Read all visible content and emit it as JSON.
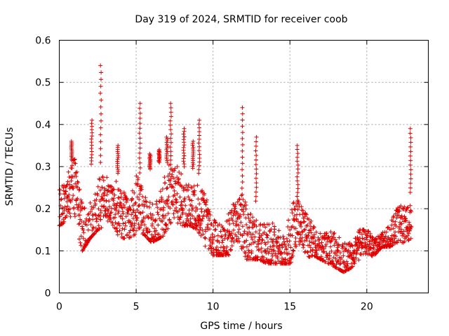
{
  "chart_data": {
    "type": "scatter",
    "title": "Day 319 of 2024, SRMTID for receiver coob",
    "xlabel": "GPS time / hours",
    "ylabel": "SRMTID / TECUs",
    "xlim": [
      0,
      24
    ],
    "ylim": [
      0,
      0.6
    ],
    "xticks": [
      0,
      5,
      10,
      15,
      20
    ],
    "yticks": [
      0,
      0.1,
      0.2,
      0.3,
      0.4,
      0.5,
      0.6
    ],
    "xtick_labels": [
      "0",
      "5",
      "10",
      "15",
      "20"
    ],
    "ytick_labels": [
      "0",
      "0.1",
      "0.2",
      "0.3",
      "0.4",
      "0.5",
      "0.6"
    ],
    "grid": true,
    "marker": "+",
    "color": "#e00000",
    "series": [
      {
        "name": "SRMTID",
        "envelope": {
          "t": [
            0.0,
            0.5,
            1.0,
            1.5,
            2.0,
            2.5,
            3.0,
            3.5,
            4.0,
            4.5,
            5.0,
            5.5,
            6.0,
            6.5,
            7.0,
            7.5,
            8.0,
            8.5,
            9.0,
            9.5,
            10.0,
            10.5,
            11.0,
            11.5,
            12.0,
            12.5,
            13.0,
            13.5,
            14.0,
            14.5,
            15.0,
            15.5,
            16.0,
            16.5,
            17.0,
            17.5,
            18.0,
            18.5,
            19.0,
            19.5,
            20.0,
            20.5,
            21.0,
            21.5,
            22.0,
            22.5,
            22.9
          ],
          "low": [
            0.16,
            0.17,
            0.17,
            0.1,
            0.13,
            0.15,
            0.16,
            0.15,
            0.13,
            0.13,
            0.14,
            0.14,
            0.12,
            0.13,
            0.14,
            0.14,
            0.16,
            0.16,
            0.15,
            0.11,
            0.09,
            0.09,
            0.09,
            0.09,
            0.08,
            0.08,
            0.08,
            0.07,
            0.07,
            0.07,
            0.07,
            0.09,
            0.08,
            0.09,
            0.08,
            0.07,
            0.06,
            0.05,
            0.06,
            0.07,
            0.08,
            0.09,
            0.11,
            0.11,
            0.12,
            0.12,
            0.13
          ],
          "high": [
            0.27,
            0.29,
            0.33,
            0.25,
            0.3,
            0.33,
            0.28,
            0.26,
            0.3,
            0.24,
            0.3,
            0.27,
            0.3,
            0.31,
            0.31,
            0.3,
            0.3,
            0.3,
            0.29,
            0.26,
            0.23,
            0.22,
            0.21,
            0.21,
            0.24,
            0.23,
            0.21,
            0.19,
            0.2,
            0.19,
            0.23,
            0.22,
            0.19,
            0.19,
            0.18,
            0.17,
            0.16,
            0.15,
            0.15,
            0.15,
            0.15,
            0.14,
            0.17,
            0.19,
            0.22,
            0.23,
            0.24
          ]
        },
        "spikes": [
          {
            "t": 0.8,
            "max": 0.36
          },
          {
            "t": 2.1,
            "max": 0.41
          },
          {
            "t": 2.7,
            "max": 0.54
          },
          {
            "t": 3.8,
            "max": 0.35
          },
          {
            "t": 5.25,
            "max": 0.45
          },
          {
            "t": 5.9,
            "max": 0.33
          },
          {
            "t": 6.5,
            "max": 0.34
          },
          {
            "t": 7.0,
            "max": 0.37
          },
          {
            "t": 7.25,
            "max": 0.45
          },
          {
            "t": 8.1,
            "max": 0.39
          },
          {
            "t": 8.7,
            "max": 0.36
          },
          {
            "t": 9.1,
            "max": 0.41
          },
          {
            "t": 11.9,
            "max": 0.44
          },
          {
            "t": 12.8,
            "max": 0.37
          },
          {
            "t": 15.5,
            "max": 0.35
          },
          {
            "t": 22.85,
            "max": 0.39
          }
        ]
      }
    ]
  }
}
